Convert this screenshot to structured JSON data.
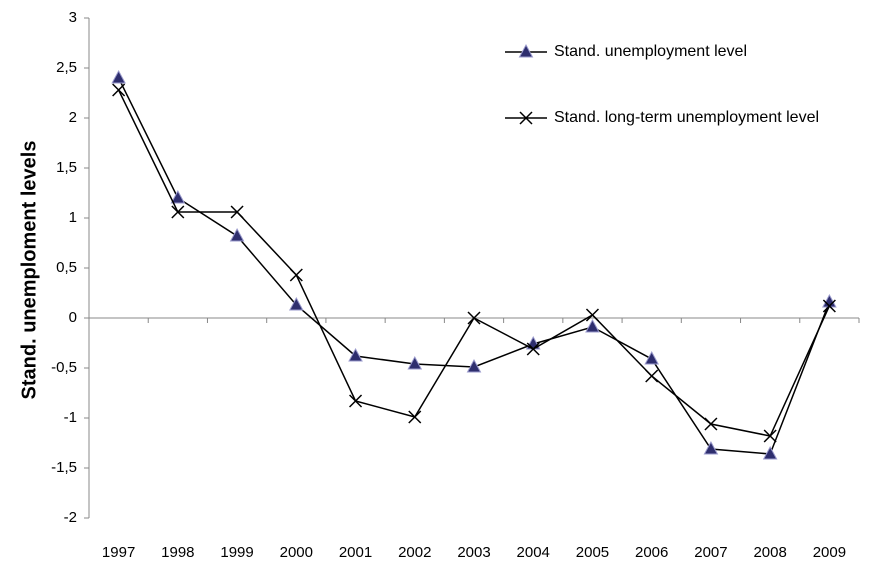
{
  "chart_data": {
    "type": "line",
    "y_label": "Stand. unemploment levels",
    "categories": [
      "1997",
      "1998",
      "1999",
      "2000",
      "2001",
      "2002",
      "2003",
      "2004",
      "2005",
      "2006",
      "2007",
      "2008",
      "2009"
    ],
    "series": [
      {
        "name": "Stand. unemployment level",
        "color": "#000000",
        "marker": "triangle",
        "marker_color": "#2e2e6e",
        "values": [
          2.4,
          1.2,
          0.82,
          0.13,
          -0.38,
          -0.46,
          -0.49,
          -0.26,
          -0.09,
          -0.41,
          -1.31,
          -1.36,
          0.16
        ]
      },
      {
        "name": "Stand. long-term unemployment level",
        "color": "#000000",
        "marker": "x",
        "values": [
          2.28,
          1.06,
          1.06,
          0.43,
          -0.83,
          -0.99,
          0.0,
          -0.31,
          0.03,
          -0.58,
          -1.06,
          -1.18,
          0.12
        ]
      }
    ],
    "ylim": [
      -2,
      3
    ],
    "yticks": [
      {
        "value": -2,
        "label": "-2"
      },
      {
        "value": -1.5,
        "label": "-1,5"
      },
      {
        "value": -1,
        "label": "-1"
      },
      {
        "value": -0.5,
        "label": "-0,5"
      },
      {
        "value": 0,
        "label": "0"
      },
      {
        "value": 0.5,
        "label": "0,5"
      },
      {
        "value": 1,
        "label": "1"
      },
      {
        "value": 1.5,
        "label": "1,5"
      },
      {
        "value": 2,
        "label": "2"
      },
      {
        "value": 2.5,
        "label": "2,5"
      },
      {
        "value": 3,
        "label": "3"
      }
    ],
    "grid": false,
    "legend": "upper right"
  }
}
